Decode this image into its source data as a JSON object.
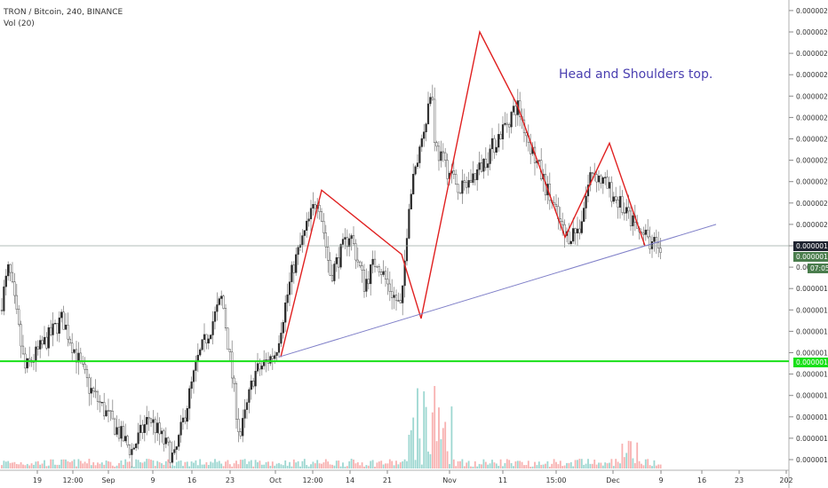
{
  "header": {
    "symbol_line": "TRON / Bitcoin, 240, BINANCE",
    "indicator": "Vol (20)"
  },
  "annotation": "Head and Shoulders top.",
  "colors": {
    "up": "#26a69a",
    "down": "#ef5350",
    "candle_body": "#404040",
    "pattern_line": "#e02020",
    "trendline": "#7f7fc8",
    "support_line": "#18e018",
    "annotation": "#4a3fb0"
  },
  "badges": {
    "last_price": "0.00000195",
    "current_price": "0.00000194",
    "countdown": "07:05",
    "support_price": "0.00000168"
  },
  "chart_data": {
    "type": "candlestick",
    "title": "TRON / Bitcoin, 240, BINANCE",
    "y_axis": {
      "range": [
        1.43e-06,
        2.52e-06
      ],
      "ticks": [
        "0.00000145",
        "0.00000150",
        "0.00000155",
        "0.00000160",
        "0.00000165",
        "0.00000170",
        "0.00000175",
        "0.00000180",
        "0.00000185",
        "0.00000190",
        "0.00000195",
        "0.00000200",
        "0.00000205",
        "0.00000210",
        "0.00000215",
        "0.00000220",
        "0.00000225",
        "0.00000230",
        "0.00000235",
        "0.00000240",
        "0.00000245",
        "0.00000250"
      ]
    },
    "x_axis": {
      "ticks": [
        "19",
        "12:00",
        "Sep",
        "9",
        "16",
        "23",
        "Oct",
        "12:00",
        "14",
        "21",
        "Nov",
        "11",
        "15:00",
        "Dec",
        "9",
        "16",
        "23",
        "202"
      ]
    },
    "price_path": [
      {
        "x": "start",
        "close": 1.8e-06
      },
      {
        "x": "early",
        "close": 1.9e-06
      },
      {
        "x": "19",
        "close": 1.66e-06
      },
      {
        "x": "12:00",
        "close": 1.78e-06
      },
      {
        "x": "late-Aug",
        "close": 1.62e-06
      },
      {
        "x": "Sep",
        "close": 1.55e-06
      },
      {
        "x": "9",
        "close": 1.47e-06
      },
      {
        "x": "9b",
        "close": 1.55e-06
      },
      {
        "x": "9c",
        "close": 1.45e-06
      },
      {
        "x": "16",
        "close": 1.68e-06
      },
      {
        "x": "16b",
        "close": 1.83e-06
      },
      {
        "x": "23",
        "close": 1.5e-06
      },
      {
        "x": "23b",
        "close": 1.65e-06
      },
      {
        "x": "Oct",
        "close": 1.7e-06
      },
      {
        "x": "Oct-mid",
        "close": 1.9e-06
      },
      {
        "x": "12:00",
        "close": 2.07e-06
      },
      {
        "x": "12:00b",
        "close": 1.88e-06
      },
      {
        "x": "14",
        "close": 1.98e-06
      },
      {
        "x": "14b",
        "close": 1.86e-06
      },
      {
        "x": "21",
        "close": 1.92e-06
      },
      {
        "x": "21b",
        "close": 1.86e-06
      },
      {
        "x": "21c",
        "close": 1.8e-06
      },
      {
        "x": "late-Oct",
        "close": 2.05e-06
      },
      {
        "x": "late-Oct-b",
        "close": 2.32e-06
      },
      {
        "x": "Nov-pre",
        "close": 2.18e-06
      },
      {
        "x": "Nov",
        "close": 2.12e-06
      },
      {
        "x": "Nov-b",
        "close": 2.08e-06
      },
      {
        "x": "Nov-c",
        "close": 2.13e-06
      },
      {
        "x": "11",
        "close": 2.28e-06
      },
      {
        "x": "11b",
        "close": 2.19e-06
      },
      {
        "x": "11c",
        "close": 2.1e-06
      },
      {
        "x": "15:00",
        "close": 1.97e-06
      },
      {
        "x": "15:00b",
        "close": 1.99e-06
      },
      {
        "x": "mid-Nov",
        "close": 2.13e-06
      },
      {
        "x": "late-Nov",
        "close": 2.07e-06
      },
      {
        "x": "Dec",
        "close": 1.98e-06
      },
      {
        "x": "9",
        "close": 1.94e-06
      }
    ],
    "volume": {
      "label": "Vol (20)",
      "note": "spikes around late October peak"
    },
    "overlays": {
      "head_and_shoulders": [
        {
          "x": "Oct",
          "y": 1.69e-06
        },
        {
          "x": "12:00",
          "y": 2.08e-06
        },
        {
          "x": "21",
          "y": 1.93e-06
        },
        {
          "x": "late-Oct",
          "y": 1.78e-06
        },
        {
          "x": "Nov-head",
          "y": 2.45e-06
        },
        {
          "x": "11",
          "y": 2.28e-06
        },
        {
          "x": "15:00",
          "y": 1.97e-06
        },
        {
          "x": "late-Nov",
          "y": 2.19e-06
        },
        {
          "x": "Dec",
          "y": 1.95e-06
        }
      ],
      "trendline": [
        {
          "x": "Oct",
          "y": 1.69e-06
        },
        {
          "x": "16",
          "y": 2e-06
        }
      ],
      "support": {
        "y": 1.68e-06
      },
      "last_price_line": {
        "y": 1.95e-06
      }
    }
  }
}
